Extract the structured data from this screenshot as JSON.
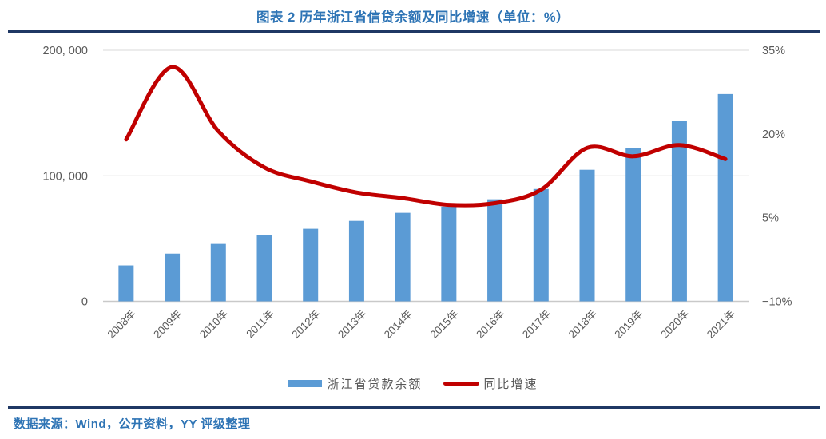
{
  "title": {
    "text": "图表 2 历年浙江省信贷余额及同比增速（单位：%）"
  },
  "legend": {
    "bar_label": "浙江省贷款余额",
    "line_label": "同比增速"
  },
  "footer": {
    "source_text": "数据来源：Wind，公开资料，YY 评级整理"
  },
  "colors": {
    "bar": "#5B9BD5",
    "line": "#C00000",
    "title_text": "#2E74B5",
    "footer_text": "#2E74B5",
    "rule": "#1F3864",
    "grid": "#D9D9D9",
    "axis_line": "#C9C9C9",
    "tick_text": "#595959",
    "background": "#FFFFFF"
  },
  "chart_data": {
    "type": "combo",
    "categories": [
      "2008年",
      "2009年",
      "2010年",
      "2011年",
      "2012年",
      "2013年",
      "2014年",
      "2015年",
      "2016年",
      "2017年",
      "2018年",
      "2019年",
      "2020年",
      "2021年"
    ],
    "series": [
      {
        "name": "浙江省贷款余额",
        "type": "bar",
        "axis": "left",
        "values": [
          28600,
          38000,
          45700,
          52700,
          57800,
          64100,
          70500,
          75500,
          81300,
          89500,
          104800,
          121900,
          143500,
          165100
        ]
      },
      {
        "name": "同比增速",
        "type": "line",
        "axis": "right",
        "values": [
          19,
          32,
          20.5,
          14,
          11.5,
          9.5,
          8.5,
          7.3,
          7.6,
          10,
          17.5,
          16,
          18,
          15.5
        ]
      }
    ],
    "left_axis": {
      "min": 0,
      "max": 200000,
      "tick_values": [
        200000,
        100000,
        0
      ],
      "tick_labels": [
        "200, 000",
        "100, 000",
        "0"
      ]
    },
    "right_axis": {
      "min": -10,
      "max": 35,
      "unit": "%",
      "tick_values": [
        35,
        20,
        5,
        -10
      ],
      "tick_labels": [
        "35%",
        "20%",
        "5%",
        "−10%"
      ]
    },
    "grid": true,
    "legend_position": "bottom",
    "x_tick_rotation_deg": -45
  }
}
